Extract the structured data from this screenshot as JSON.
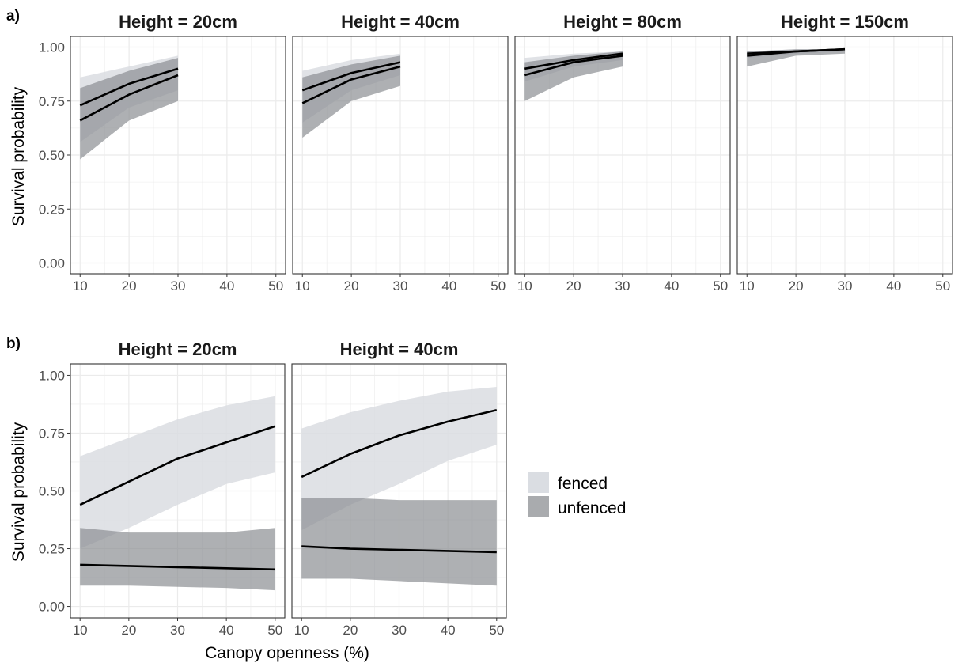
{
  "colors": {
    "fenced": "#dadde2",
    "unfenced": "#8c8f93",
    "line": "#000000",
    "grid": "#ebebeb",
    "border": "#333333"
  },
  "chart_data": [
    {
      "type": "line",
      "panel_label": "a)",
      "ylabel": "Survival probability",
      "xlabel": "",
      "xlim": [
        10,
        50
      ],
      "ylim": [
        0,
        1
      ],
      "xticks": [
        "10",
        "20",
        "30",
        "40",
        "50"
      ],
      "yticks": [
        "0.00",
        "0.25",
        "0.50",
        "0.75",
        "1.00"
      ],
      "grid": true,
      "facets": [
        {
          "title": "Height = 20cm",
          "series": [
            {
              "group": "fenced",
              "x": [
                10,
                20,
                30
              ],
              "y": [
                0.73,
                0.83,
                0.9
              ],
              "lower": [
                0.56,
                0.72,
                0.8
              ],
              "upper": [
                0.86,
                0.91,
                0.96
              ]
            },
            {
              "group": "unfenced",
              "x": [
                10,
                20,
                30
              ],
              "y": [
                0.66,
                0.78,
                0.87
              ],
              "lower": [
                0.48,
                0.66,
                0.75
              ],
              "upper": [
                0.81,
                0.89,
                0.95
              ]
            }
          ]
        },
        {
          "title": "Height = 40cm",
          "series": [
            {
              "group": "fenced",
              "x": [
                10,
                20,
                30
              ],
              "y": [
                0.8,
                0.88,
                0.93
              ],
              "lower": [
                0.65,
                0.8,
                0.87
              ],
              "upper": [
                0.89,
                0.94,
                0.97
              ]
            },
            {
              "group": "unfenced",
              "x": [
                10,
                20,
                30
              ],
              "y": [
                0.74,
                0.85,
                0.91
              ],
              "lower": [
                0.58,
                0.75,
                0.82
              ],
              "upper": [
                0.86,
                0.92,
                0.96
              ]
            }
          ]
        },
        {
          "title": "Height = 80cm",
          "series": [
            {
              "group": "fenced",
              "x": [
                10,
                20,
                30
              ],
              "y": [
                0.9,
                0.94,
                0.97
              ],
              "lower": [
                0.84,
                0.91,
                0.94
              ],
              "upper": [
                0.95,
                0.97,
                0.98
              ]
            },
            {
              "group": "unfenced",
              "x": [
                10,
                20,
                30
              ],
              "y": [
                0.87,
                0.93,
                0.96
              ],
              "lower": [
                0.75,
                0.86,
                0.91
              ],
              "upper": [
                0.93,
                0.96,
                0.98
              ]
            }
          ]
        },
        {
          "title": "Height = 150cm",
          "series": [
            {
              "group": "fenced",
              "x": [
                10,
                20,
                30
              ],
              "y": [
                0.97,
                0.98,
                0.99
              ],
              "lower": [
                0.95,
                0.97,
                0.98
              ],
              "upper": [
                0.98,
                0.99,
                0.99
              ]
            },
            {
              "group": "unfenced",
              "x": [
                10,
                20,
                30
              ],
              "y": [
                0.96,
                0.98,
                0.99
              ],
              "lower": [
                0.91,
                0.96,
                0.97
              ],
              "upper": [
                0.98,
                0.99,
                0.99
              ]
            }
          ]
        }
      ]
    },
    {
      "type": "line",
      "panel_label": "b)",
      "ylabel": "Survival probability",
      "xlabel": "Canopy openness (%)",
      "xlim": [
        10,
        50
      ],
      "ylim": [
        0,
        1
      ],
      "xticks": [
        "10",
        "20",
        "30",
        "40",
        "50"
      ],
      "yticks": [
        "0.00",
        "0.25",
        "0.50",
        "0.75",
        "1.00"
      ],
      "grid": true,
      "facets": [
        {
          "title": "Height = 20cm",
          "series": [
            {
              "group": "fenced",
              "x": [
                10,
                20,
                30,
                40,
                50
              ],
              "y": [
                0.44,
                0.54,
                0.64,
                0.71,
                0.78
              ],
              "lower": [
                0.25,
                0.34,
                0.44,
                0.53,
                0.58
              ],
              "upper": [
                0.65,
                0.73,
                0.81,
                0.87,
                0.91
              ]
            },
            {
              "group": "unfenced",
              "x": [
                10,
                20,
                30,
                40,
                50
              ],
              "y": [
                0.18,
                0.175,
                0.17,
                0.165,
                0.16
              ],
              "lower": [
                0.09,
                0.09,
                0.085,
                0.08,
                0.07
              ],
              "upper": [
                0.34,
                0.32,
                0.32,
                0.32,
                0.34
              ]
            }
          ]
        },
        {
          "title": "Height = 40cm",
          "series": [
            {
              "group": "fenced",
              "x": [
                10,
                20,
                30,
                40,
                50
              ],
              "y": [
                0.56,
                0.66,
                0.74,
                0.8,
                0.85
              ],
              "lower": [
                0.33,
                0.44,
                0.53,
                0.63,
                0.7
              ],
              "upper": [
                0.77,
                0.84,
                0.89,
                0.93,
                0.95
              ]
            },
            {
              "group": "unfenced",
              "x": [
                10,
                20,
                30,
                40,
                50
              ],
              "y": [
                0.26,
                0.25,
                0.245,
                0.24,
                0.235
              ],
              "lower": [
                0.12,
                0.12,
                0.11,
                0.1,
                0.09
              ],
              "upper": [
                0.47,
                0.47,
                0.46,
                0.46,
                0.46
              ]
            }
          ]
        }
      ]
    }
  ],
  "legend": {
    "items": [
      {
        "key": "fenced",
        "label": "fenced"
      },
      {
        "key": "unfenced",
        "label": "unfenced"
      }
    ]
  }
}
